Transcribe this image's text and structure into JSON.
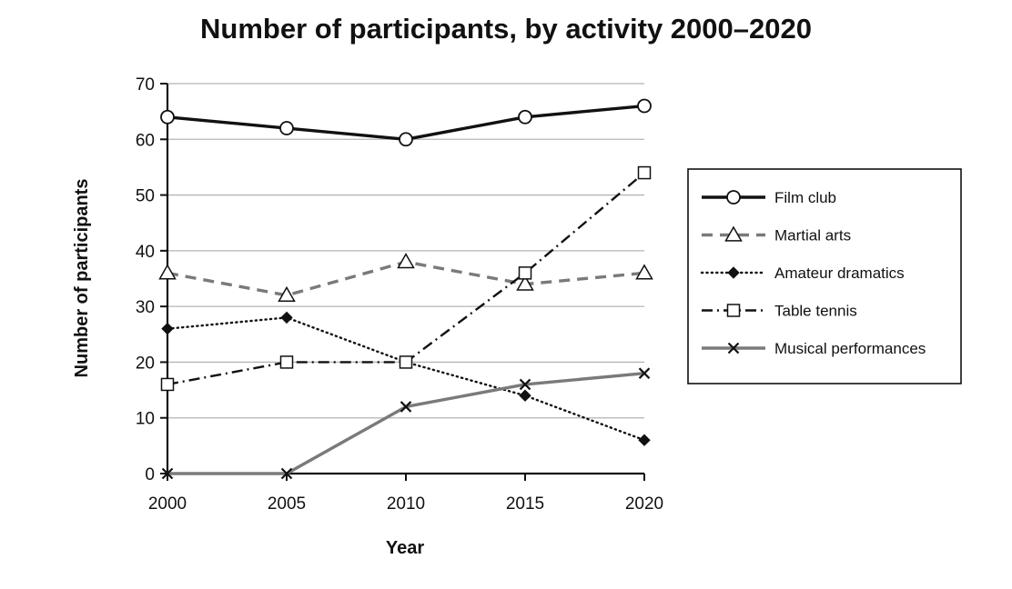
{
  "chart_data": {
    "type": "line",
    "title": "Number of participants, by activity 2000–2020",
    "xlabel": "Year",
    "ylabel": "Number of participants",
    "x": [
      2000,
      2005,
      2010,
      2015,
      2020
    ],
    "x_tick_labels": [
      "2000",
      "2005",
      "2010",
      "2015",
      "2020"
    ],
    "ylim": [
      0,
      70
    ],
    "y_ticks": [
      0,
      10,
      20,
      30,
      40,
      50,
      60,
      70
    ],
    "grid": "horizontal",
    "legend_position": "right",
    "series": [
      {
        "name": "Film club",
        "values": [
          64,
          62,
          60,
          64,
          66
        ],
        "color": "#111111",
        "line_style": "solid",
        "marker": "circle"
      },
      {
        "name": "Martial arts",
        "values": [
          36,
          32,
          38,
          34,
          36
        ],
        "color": "#7a7a7a",
        "line_style": "dashed",
        "marker": "triangle"
      },
      {
        "name": "Amateur dramatics",
        "values": [
          26,
          28,
          20,
          14,
          6
        ],
        "color": "#111111",
        "line_style": "dotted",
        "marker": "diamond"
      },
      {
        "name": "Table tennis",
        "values": [
          16,
          20,
          20,
          36,
          54
        ],
        "color": "#111111",
        "line_style": "dash-dot",
        "marker": "square"
      },
      {
        "name": "Musical performances",
        "values": [
          0,
          0,
          12,
          16,
          18
        ],
        "color": "#7a7a7a",
        "line_style": "solid",
        "marker": "cross"
      }
    ]
  }
}
